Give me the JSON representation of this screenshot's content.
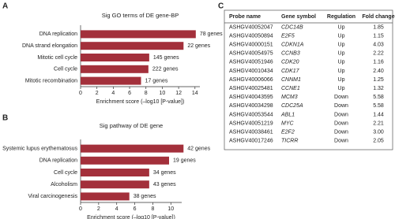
{
  "panel_labels": [
    "A",
    "B",
    "C"
  ],
  "chart_data": [
    {
      "type": "barh",
      "title": "Sig GO terms of DE gene-BP",
      "categories": [
        "DNA replication",
        "DNA strand elongation",
        "Mitotic cell cycle",
        "Cell cycle",
        "Mitotic recombination"
      ],
      "values": [
        14.1,
        12.6,
        8.4,
        8.3,
        7.4
      ],
      "annotations": [
        "78 genes",
        "22 genes",
        "145 genes",
        "222 genes",
        "17 genes"
      ],
      "color": "#a3303b",
      "xlabel": "Enrichment score (–log10 [P-value])",
      "xlim": [
        0,
        14.6
      ],
      "xticks": [
        0,
        2,
        4,
        6,
        8,
        10,
        12,
        14
      ]
    },
    {
      "type": "barh",
      "title": "Sig pathway of DE gene",
      "categories": [
        "Systemic lupus erythematosus",
        "DNA replication",
        "Cell cycle",
        "Alcoholism",
        "Viral carcinogenesis"
      ],
      "values": [
        11.4,
        9.8,
        7.6,
        7.6,
        5.4
      ],
      "annotations": [
        "42 genes",
        "19 genes",
        "34 genes",
        "43 genes",
        "38 genes"
      ],
      "color": "#a3303b",
      "xlabel": "Enrichment score (–log10 [P-value])",
      "xlim": [
        0,
        11.2
      ],
      "xticks": [
        0,
        2,
        4,
        6,
        8,
        10
      ]
    }
  ],
  "table": {
    "header": [
      "Probe name",
      "Gene symbol",
      "Regulation",
      "Fold change"
    ],
    "rows": [
      [
        "ASHGV40052047",
        "CDC14B",
        "Up",
        "1.85"
      ],
      [
        "ASHGV40050894",
        "E2F5",
        "Up",
        "1.15"
      ],
      [
        "ASHGV40000151",
        "CDKN1A",
        "Up",
        "4.03"
      ],
      [
        "ASHGV40054975",
        "CCNB3",
        "Up",
        "2.22"
      ],
      [
        "ASHGV40051946",
        "CDK20",
        "Up",
        "1.16"
      ],
      [
        "ASHGV40010434",
        "CDK17",
        "Up",
        "2.40"
      ],
      [
        "ASHGV40006066",
        "CNNM1",
        "Up",
        "1.25"
      ],
      [
        "ASHGV40025481",
        "CCNE1",
        "Up",
        "1.32"
      ],
      [
        "ASHGV40043595",
        "MCM3",
        "Down",
        "5.58"
      ],
      [
        "ASHGV40034298",
        "CDC25A",
        "Down",
        "5.58"
      ],
      [
        "ASHGV40053544",
        "ABL1",
        "Down",
        "1.44"
      ],
      [
        "ASHGV40051219",
        "MYC",
        "Down",
        "2.21"
      ],
      [
        "ASHGV40038461",
        "E2F2",
        "Down",
        "3.00"
      ],
      [
        "ASHGV40017246",
        "TICRR",
        "Down",
        "2.05"
      ]
    ]
  }
}
